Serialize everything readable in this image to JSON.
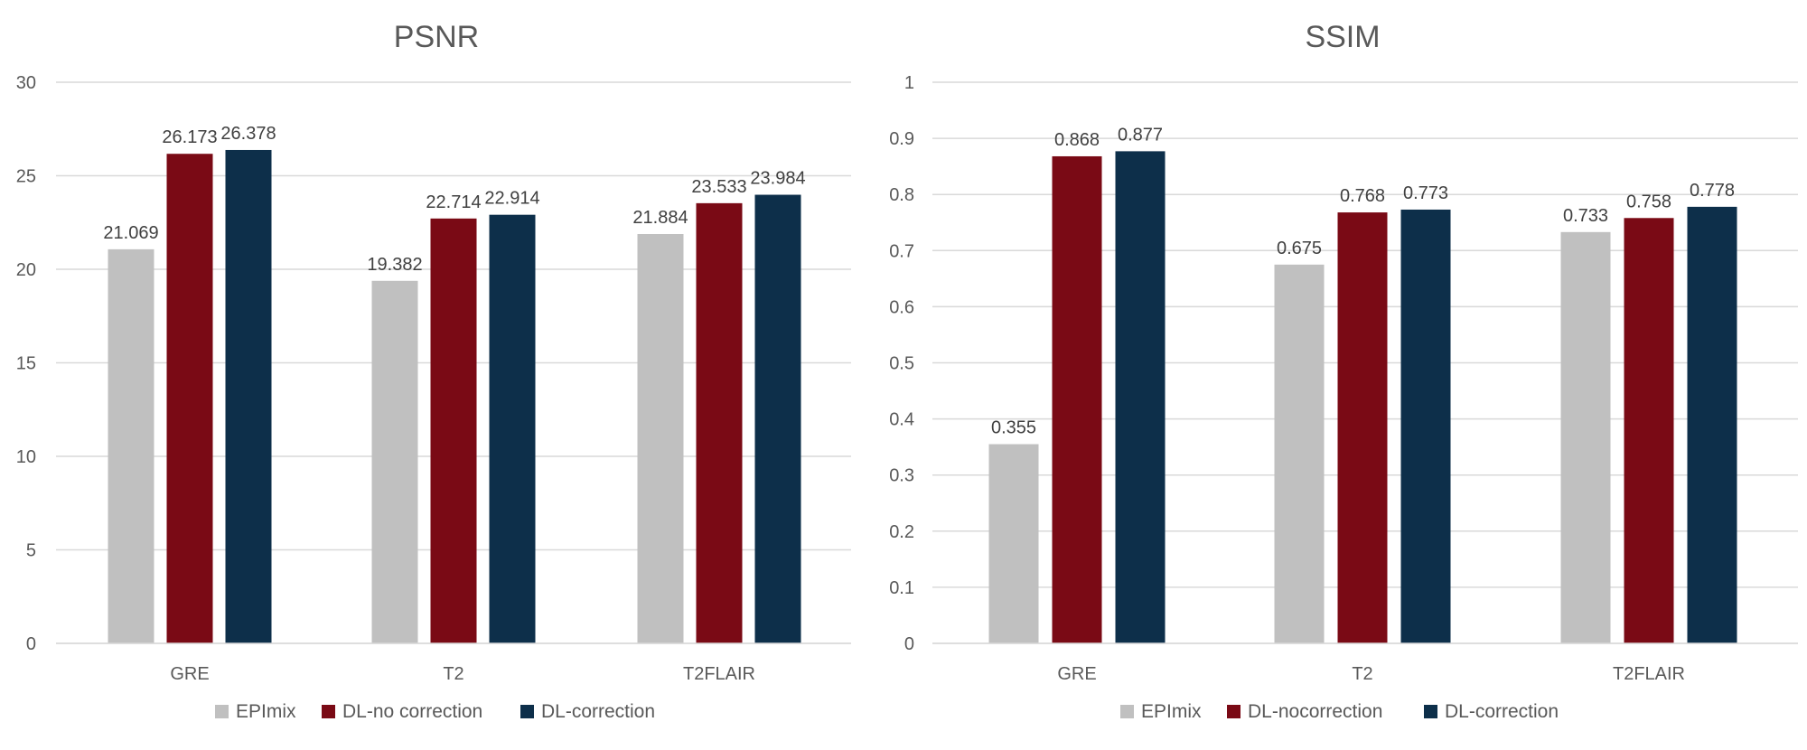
{
  "colors": {
    "EPImix": "#c0c0c0",
    "DL-no correction": "#7a0a15",
    "DL-correction": "#0d2f4a",
    "gridline": "#d9d9d9",
    "axis_text": "#595959",
    "title_text": "#595959",
    "label_text": "#404040"
  },
  "chart_data": [
    {
      "type": "bar",
      "title": "PSNR",
      "categories": [
        "GRE",
        "T2",
        "T2FLAIR"
      ],
      "ylim": [
        0,
        30
      ],
      "yticks": [
        0,
        5,
        10,
        15,
        20,
        25,
        30
      ],
      "grid": true,
      "legend_position": "bottom",
      "data_labels": true,
      "series": [
        {
          "name": "EPImix",
          "values": [
            21.069,
            19.382,
            21.884
          ],
          "labels": [
            "21.069",
            "19.382",
            "21.884"
          ]
        },
        {
          "name": "DL-no correction",
          "values": [
            26.173,
            22.714,
            23.533
          ],
          "labels": [
            "26.173",
            "22.714",
            "23.533"
          ]
        },
        {
          "name": "DL-correction",
          "values": [
            26.378,
            22.914,
            23.984
          ],
          "labels": [
            "26.378",
            "22.914",
            "23.984"
          ]
        }
      ]
    },
    {
      "type": "bar",
      "title": "SSIM",
      "categories": [
        "GRE",
        "T2",
        "T2FLAIR"
      ],
      "ylim": [
        0,
        1
      ],
      "yticks": [
        0,
        0.1,
        0.2,
        0.3,
        0.4,
        0.5,
        0.6,
        0.7,
        0.8,
        0.9,
        1
      ],
      "grid": true,
      "legend_position": "bottom",
      "data_labels": true,
      "series": [
        {
          "name": "EPImix",
          "values": [
            0.355,
            0.675,
            0.733
          ],
          "labels": [
            "0.355",
            "0.675",
            "0.733"
          ]
        },
        {
          "name": "DL-nocorrection",
          "values": [
            0.868,
            0.768,
            0.758
          ],
          "labels": [
            "0.868",
            "0.768",
            "0.758"
          ]
        },
        {
          "name": "DL-correction",
          "values": [
            0.877,
            0.773,
            0.778
          ],
          "labels": [
            "0.877",
            "0.773",
            "0.778"
          ]
        }
      ]
    }
  ]
}
